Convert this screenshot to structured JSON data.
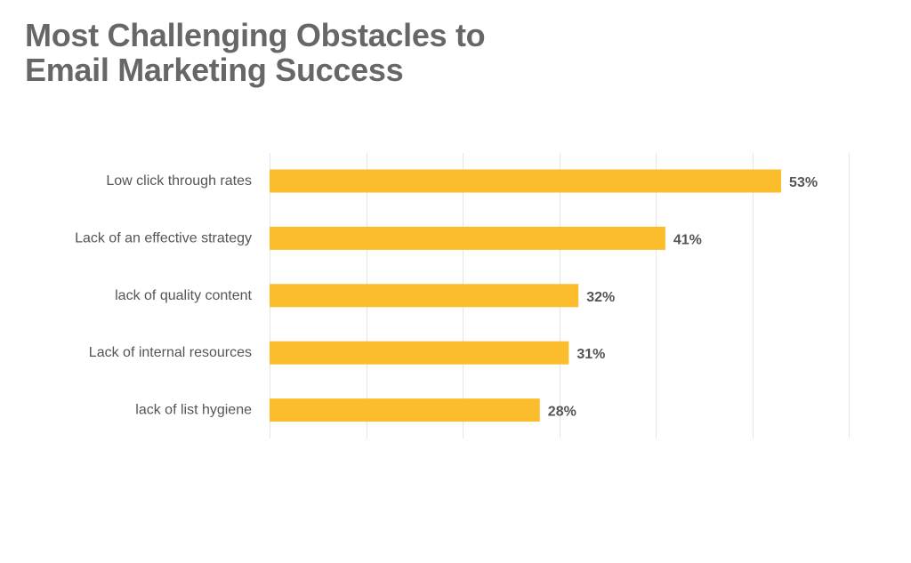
{
  "chart_data": {
    "type": "bar",
    "orientation": "horizontal",
    "title": [
      "Most Challenging Obstacles to",
      "Email Marketing Success"
    ],
    "categories": [
      "Low click through rates",
      "Lack of an effective strategy",
      "lack of quality content",
      "Lack of internal resources",
      "lack of list hygiene"
    ],
    "values": [
      53,
      41,
      32,
      31,
      28
    ],
    "value_labels": [
      "53%",
      "41%",
      "32%",
      "31%",
      "28%"
    ],
    "xlim": [
      0,
      60
    ],
    "grid": true,
    "bar_color": "#fbbd2c"
  }
}
